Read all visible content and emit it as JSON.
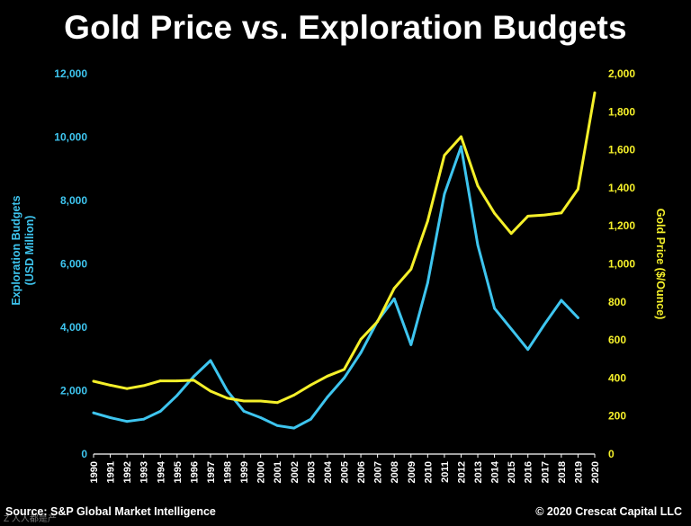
{
  "chart_data": {
    "type": "line",
    "title": "Gold Price vs. Exploration Budgets",
    "x": [
      "1990",
      "1991",
      "1992",
      "1993",
      "1994",
      "1995",
      "1996",
      "1997",
      "1998",
      "1999",
      "2000",
      "2001",
      "2002",
      "2003",
      "2004",
      "2005",
      "2006",
      "2007",
      "2008",
      "2009",
      "2010",
      "2011",
      "2012",
      "2013",
      "2014",
      "2015",
      "2016",
      "2017",
      "2018",
      "2019",
      "2020"
    ],
    "left_axis": {
      "label": "Exploration Budgets\n(USD Million)",
      "range": [
        0,
        12000
      ],
      "ticks": [
        0,
        2000,
        4000,
        6000,
        8000,
        10000,
        12000
      ],
      "tick_labels": [
        "0",
        "2,000",
        "4,000",
        "6,000",
        "8,000",
        "10,000",
        "12,000"
      ],
      "color": "#3ec5ef"
    },
    "right_axis": {
      "label": "Gold Price ($/Ounce)",
      "range": [
        0,
        2000
      ],
      "ticks": [
        0,
        200,
        400,
        600,
        800,
        1000,
        1200,
        1400,
        1600,
        1800,
        2000
      ],
      "tick_labels": [
        "0",
        "200",
        "400",
        "600",
        "800",
        "1,000",
        "1,200",
        "1,400",
        "1,600",
        "1,800",
        "2,000"
      ],
      "color": "#f5f02a"
    },
    "series": [
      {
        "name": "Exploration Budgets",
        "axis": "left",
        "color": "#3ec5ef",
        "values": [
          1300,
          1150,
          1030,
          1100,
          1350,
          1850,
          2450,
          2950,
          2000,
          1350,
          1150,
          900,
          820,
          1100,
          1800,
          2400,
          3200,
          4200,
          4900,
          3450,
          5400,
          8200,
          9700,
          6600,
          4600,
          3950,
          3300,
          4100,
          4850,
          4300,
          null
        ]
      },
      {
        "name": "Gold Price",
        "axis": "right",
        "color": "#f5f02a",
        "values": [
          383,
          362,
          344,
          360,
          385,
          385,
          388,
          331,
          294,
          279,
          279,
          271,
          310,
          363,
          410,
          445,
          604,
          697,
          872,
          972,
          1225,
          1571,
          1669,
          1411,
          1266,
          1160,
          1251,
          1257,
          1268,
          1393,
          1900
        ]
      }
    ]
  },
  "footer": {
    "source": "Source: S&P Global Market Intelligence",
    "credit": "© 2020 Crescat Capital LLC",
    "watermark": "Z 人人都是产"
  }
}
